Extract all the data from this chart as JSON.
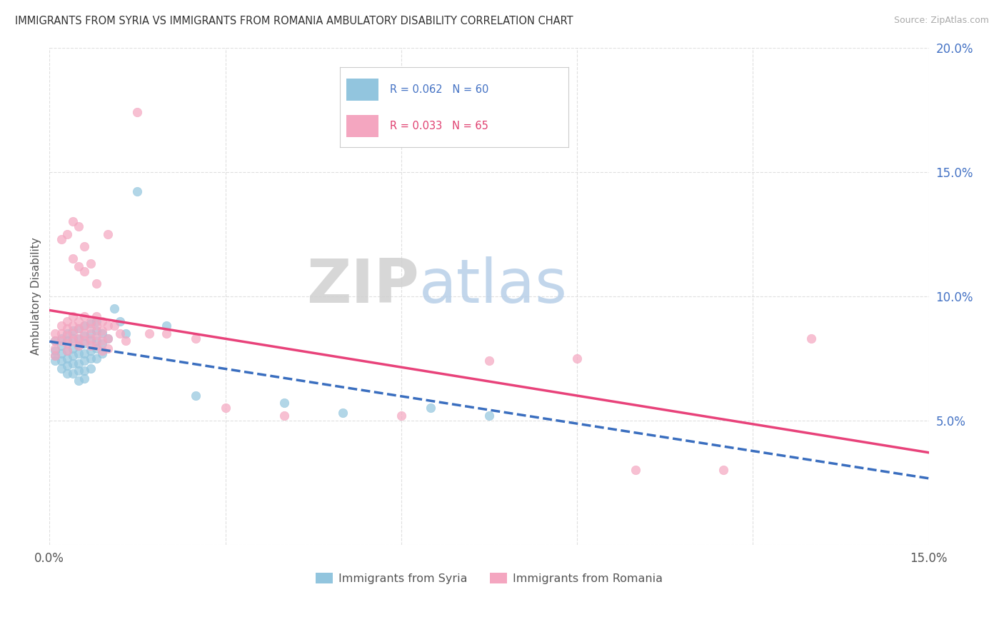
{
  "title": "IMMIGRANTS FROM SYRIA VS IMMIGRANTS FROM ROMANIA AMBULATORY DISABILITY CORRELATION CHART",
  "source": "Source: ZipAtlas.com",
  "ylabel": "Ambulatory Disability",
  "xlim": [
    0.0,
    0.15
  ],
  "ylim": [
    0.0,
    0.2
  ],
  "xticks": [
    0.0,
    0.03,
    0.06,
    0.09,
    0.12,
    0.15
  ],
  "xtick_labels": [
    "0.0%",
    "",
    "",
    "",
    "",
    "15.0%"
  ],
  "yticks": [
    0.0,
    0.05,
    0.1,
    0.15,
    0.2
  ],
  "ytick_labels": [
    "",
    "5.0%",
    "10.0%",
    "15.0%",
    "20.0%"
  ],
  "watermark_zip": "ZIP",
  "watermark_atlas": "atlas",
  "syria_color": "#92c5de",
  "romania_color": "#f4a6c0",
  "syria_line_color": "#3a6ebf",
  "romania_line_color": "#e8427a",
  "ytick_color": "#4472c4",
  "background_color": "#ffffff",
  "grid_color": "#d8d8d8",
  "syria_R": 0.062,
  "syria_N": 60,
  "romania_R": 0.033,
  "romania_N": 65,
  "syria_points": [
    [
      0.001,
      0.082
    ],
    [
      0.001,
      0.078
    ],
    [
      0.001,
      0.076
    ],
    [
      0.001,
      0.074
    ],
    [
      0.002,
      0.083
    ],
    [
      0.002,
      0.08
    ],
    [
      0.002,
      0.077
    ],
    [
      0.002,
      0.074
    ],
    [
      0.002,
      0.071
    ],
    [
      0.003,
      0.085
    ],
    [
      0.003,
      0.082
    ],
    [
      0.003,
      0.078
    ],
    [
      0.003,
      0.075
    ],
    [
      0.003,
      0.072
    ],
    [
      0.003,
      0.069
    ],
    [
      0.004,
      0.086
    ],
    [
      0.004,
      0.083
    ],
    [
      0.004,
      0.079
    ],
    [
      0.004,
      0.076
    ],
    [
      0.004,
      0.073
    ],
    [
      0.004,
      0.069
    ],
    [
      0.005,
      0.087
    ],
    [
      0.005,
      0.083
    ],
    [
      0.005,
      0.08
    ],
    [
      0.005,
      0.077
    ],
    [
      0.005,
      0.073
    ],
    [
      0.005,
      0.07
    ],
    [
      0.005,
      0.066
    ],
    [
      0.006,
      0.088
    ],
    [
      0.006,
      0.084
    ],
    [
      0.006,
      0.081
    ],
    [
      0.006,
      0.077
    ],
    [
      0.006,
      0.074
    ],
    [
      0.006,
      0.07
    ],
    [
      0.006,
      0.067
    ],
    [
      0.007,
      0.089
    ],
    [
      0.007,
      0.085
    ],
    [
      0.007,
      0.082
    ],
    [
      0.007,
      0.078
    ],
    [
      0.007,
      0.075
    ],
    [
      0.007,
      0.071
    ],
    [
      0.008,
      0.09
    ],
    [
      0.008,
      0.086
    ],
    [
      0.008,
      0.082
    ],
    [
      0.008,
      0.079
    ],
    [
      0.008,
      0.075
    ],
    [
      0.009,
      0.085
    ],
    [
      0.009,
      0.081
    ],
    [
      0.009,
      0.077
    ],
    [
      0.01,
      0.083
    ],
    [
      0.011,
      0.095
    ],
    [
      0.012,
      0.09
    ],
    [
      0.013,
      0.085
    ],
    [
      0.015,
      0.142
    ],
    [
      0.02,
      0.088
    ],
    [
      0.025,
      0.06
    ],
    [
      0.04,
      0.057
    ],
    [
      0.05,
      0.053
    ],
    [
      0.065,
      0.055
    ],
    [
      0.075,
      0.052
    ]
  ],
  "romania_points": [
    [
      0.001,
      0.085
    ],
    [
      0.001,
      0.082
    ],
    [
      0.001,
      0.079
    ],
    [
      0.001,
      0.076
    ],
    [
      0.002,
      0.123
    ],
    [
      0.002,
      0.088
    ],
    [
      0.002,
      0.085
    ],
    [
      0.002,
      0.082
    ],
    [
      0.003,
      0.125
    ],
    [
      0.003,
      0.09
    ],
    [
      0.003,
      0.087
    ],
    [
      0.003,
      0.084
    ],
    [
      0.003,
      0.081
    ],
    [
      0.003,
      0.078
    ],
    [
      0.004,
      0.13
    ],
    [
      0.004,
      0.115
    ],
    [
      0.004,
      0.092
    ],
    [
      0.004,
      0.088
    ],
    [
      0.004,
      0.085
    ],
    [
      0.004,
      0.082
    ],
    [
      0.005,
      0.128
    ],
    [
      0.005,
      0.112
    ],
    [
      0.005,
      0.09
    ],
    [
      0.005,
      0.087
    ],
    [
      0.005,
      0.083
    ],
    [
      0.005,
      0.08
    ],
    [
      0.006,
      0.12
    ],
    [
      0.006,
      0.11
    ],
    [
      0.006,
      0.092
    ],
    [
      0.006,
      0.088
    ],
    [
      0.006,
      0.085
    ],
    [
      0.006,
      0.082
    ],
    [
      0.007,
      0.113
    ],
    [
      0.007,
      0.09
    ],
    [
      0.007,
      0.087
    ],
    [
      0.007,
      0.083
    ],
    [
      0.007,
      0.08
    ],
    [
      0.008,
      0.105
    ],
    [
      0.008,
      0.092
    ],
    [
      0.008,
      0.088
    ],
    [
      0.008,
      0.084
    ],
    [
      0.008,
      0.08
    ],
    [
      0.009,
      0.09
    ],
    [
      0.009,
      0.086
    ],
    [
      0.009,
      0.082
    ],
    [
      0.009,
      0.078
    ],
    [
      0.01,
      0.125
    ],
    [
      0.01,
      0.088
    ],
    [
      0.01,
      0.083
    ],
    [
      0.01,
      0.079
    ],
    [
      0.011,
      0.088
    ],
    [
      0.012,
      0.085
    ],
    [
      0.013,
      0.082
    ],
    [
      0.015,
      0.174
    ],
    [
      0.017,
      0.085
    ],
    [
      0.02,
      0.085
    ],
    [
      0.025,
      0.083
    ],
    [
      0.03,
      0.055
    ],
    [
      0.04,
      0.052
    ],
    [
      0.06,
      0.052
    ],
    [
      0.075,
      0.074
    ],
    [
      0.09,
      0.075
    ],
    [
      0.1,
      0.03
    ],
    [
      0.115,
      0.03
    ],
    [
      0.13,
      0.083
    ]
  ]
}
